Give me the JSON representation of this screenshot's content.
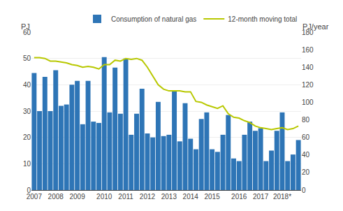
{
  "chart_data": {
    "type": "bar",
    "ylabel": "PJ",
    "y2label": "PJ/year",
    "categories": [
      "2007",
      null,
      null,
      null,
      "2008",
      null,
      null,
      null,
      "2009",
      null,
      null,
      null,
      null,
      "2010",
      null,
      null,
      null,
      "2011",
      null,
      null,
      null,
      "2012",
      null,
      null,
      null,
      "2013",
      null,
      null,
      null,
      "2014",
      null,
      null,
      null,
      "2015",
      null,
      null,
      null,
      null,
      "2016",
      null,
      null,
      null,
      "2017",
      null,
      null,
      null,
      "2018*",
      null,
      null,
      null
    ],
    "series": [
      {
        "name": "Consumption of natural gas",
        "type": "bar",
        "color": "#2e75b6",
        "values": [
          44.5,
          30.0,
          43.0,
          30.0,
          45.5,
          32.0,
          32.5,
          40.0,
          41.5,
          25.0,
          41.5,
          26.0,
          25.5,
          50.5,
          29.5,
          46.5,
          29.0,
          50.0,
          21.0,
          29.0,
          38.5,
          21.5,
          20.0,
          33.5,
          20.5,
          21.0,
          37.5,
          18.5,
          33.0,
          19.5,
          15.5,
          27.0,
          29.5,
          15.5,
          14.5,
          21.0,
          28.5,
          12.0,
          11.0,
          21.0,
          26.0,
          22.5,
          23.5,
          11.0,
          15.0,
          22.5,
          29.5,
          11.0,
          13.5,
          19.0
        ]
      },
      {
        "name": "12-month moving total",
        "type": "line",
        "color": "#b8c800",
        "axis": "y2",
        "values": [
          151,
          151,
          150,
          147,
          147,
          146,
          145,
          143,
          142,
          140,
          141,
          140,
          138,
          143,
          143,
          148,
          147,
          150,
          149,
          150,
          148,
          140,
          130,
          120,
          115,
          113,
          113,
          113,
          112,
          112,
          101,
          100,
          97,
          95,
          93,
          96,
          87,
          83,
          82,
          79,
          77,
          73,
          71,
          70,
          69,
          70,
          71,
          69,
          70,
          73
        ]
      }
    ],
    "ylim": [
      0,
      60
    ],
    "yticks": [
      0,
      10,
      20,
      30,
      40,
      50,
      60
    ],
    "y2lim": [
      0,
      180
    ],
    "y2ticks": [
      0,
      20,
      40,
      60,
      80,
      100,
      120,
      140,
      160,
      180
    ],
    "grid": true,
    "legend": "upper right"
  }
}
